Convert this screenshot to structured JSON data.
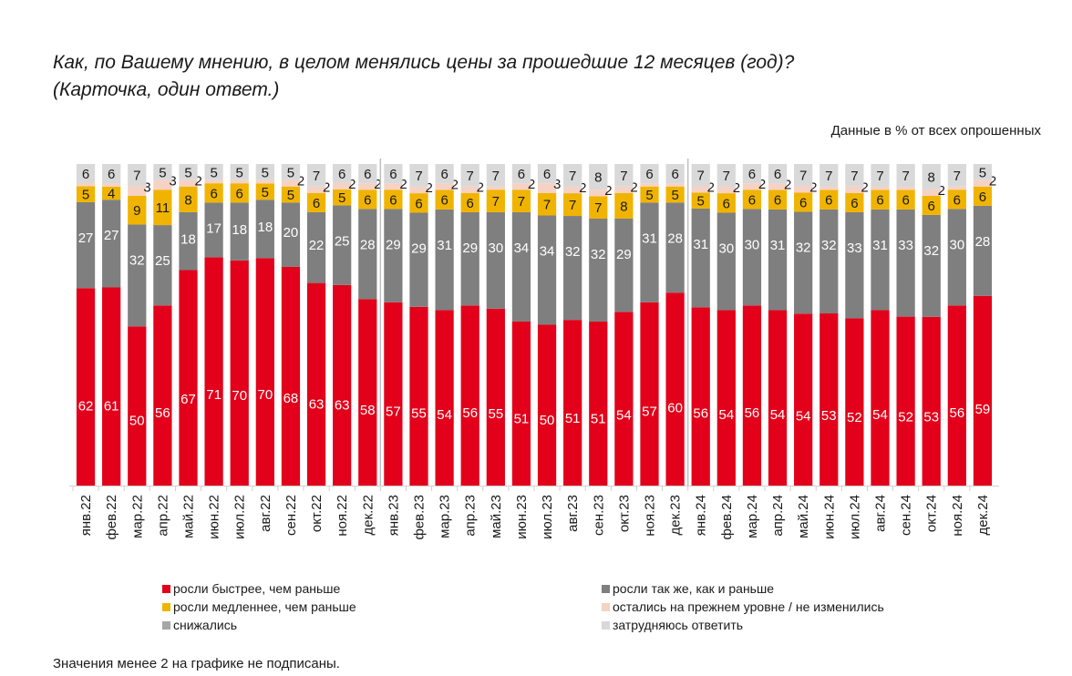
{
  "header": {
    "title": "Как, по Вашему мнению, в целом менялись цены за прошедшие 12 месяцев (год)?\n(Карточка, один ответ.)",
    "note": "Данные в % от всех опрошенных"
  },
  "footer": {
    "note": "Значения менее 2 на графике не подписаны."
  },
  "chart_data": {
    "type": "bar",
    "stacked": true,
    "title": "Как, по Вашему мнению, в целом менялись цены за прошедшие 12 месяцев (год)? (Карточка, один ответ.)",
    "subtitle": "Данные в % от всех опрошенных",
    "xlabel": "",
    "ylabel": "",
    "ylim": [
      0,
      100
    ],
    "grid": false,
    "legend_position": "bottom",
    "label_threshold": 2,
    "categories": [
      "янв.22",
      "фев.22",
      "мар.22",
      "апр.22",
      "май.22",
      "июн.22",
      "июл.22",
      "авг.22",
      "сен.22",
      "окт.22",
      "ноя.22",
      "дек.22",
      "янв.23",
      "фев.23",
      "мар.23",
      "апр.23",
      "май.23",
      "июн.23",
      "июл.23",
      "авг.23",
      "сен.23",
      "окт.23",
      "ноя.23",
      "дек.23",
      "янв.24",
      "фев.24",
      "мар.24",
      "апр.24",
      "май.24",
      "июн.24",
      "июл.24",
      "авг.24",
      "сен.24",
      "окт.24",
      "ноя.24",
      "дек.24"
    ],
    "year_separators_after": [
      "дек.22",
      "дек.23"
    ],
    "series": [
      {
        "name": "росли быстрее, чем раньше",
        "color": "#e2001a",
        "label_color": "#ffffff",
        "values": [
          62,
          61,
          50,
          56,
          67,
          71,
          70,
          70,
          68,
          63,
          63,
          58,
          57,
          55,
          54,
          56,
          55,
          51,
          50,
          51,
          51,
          54,
          57,
          60,
          56,
          54,
          56,
          54,
          54,
          53,
          52,
          54,
          52,
          53,
          56,
          59
        ]
      },
      {
        "name": "росли так же, как и раньше",
        "color": "#7f7f7f",
        "label_color": "#ffffff",
        "values": [
          27,
          27,
          32,
          25,
          18,
          17,
          18,
          18,
          20,
          22,
          25,
          28,
          29,
          29,
          31,
          29,
          30,
          34,
          34,
          32,
          32,
          29,
          31,
          28,
          31,
          30,
          30,
          31,
          32,
          32,
          33,
          31,
          33,
          32,
          30,
          28
        ]
      },
      {
        "name": "росли медленнее, чем раньше",
        "color": "#f0b400",
        "label_color": "#1a1a1a",
        "values": [
          5,
          4,
          9,
          11,
          8,
          6,
          6,
          5,
          5,
          6,
          5,
          6,
          6,
          6,
          6,
          6,
          7,
          7,
          7,
          7,
          7,
          8,
          5,
          5,
          5,
          6,
          6,
          6,
          6,
          6,
          6,
          6,
          6,
          6,
          6,
          6
        ]
      },
      {
        "name": "остались на прежнем уровне / не изменились",
        "color": "#f6d2c4",
        "label_color": "#1a1a1a",
        "values": [
          1,
          1,
          3,
          3,
          2,
          1,
          1,
          1,
          2,
          2,
          2,
          2,
          2,
          2,
          2,
          2,
          1,
          2,
          3,
          2,
          2,
          2,
          1,
          1,
          2,
          2,
          2,
          2,
          2,
          1,
          2,
          1,
          1,
          2,
          1,
          2
        ]
      },
      {
        "name": "снижались",
        "color": "#a6a6a6",
        "label_color": "#1a1a1a",
        "values": [
          0,
          0,
          0,
          0,
          0,
          0,
          0,
          0,
          0,
          0,
          0,
          0,
          0,
          0,
          0,
          0,
          0,
          0,
          0,
          0,
          0,
          0,
          0,
          0,
          0,
          0,
          0,
          0,
          0,
          0,
          0,
          0,
          0,
          0,
          0,
          0
        ]
      },
      {
        "name": "затрудняюсь ответить",
        "color": "#d9d9d9",
        "label_color": "#1a1a1a",
        "values": [
          6,
          6,
          7,
          5,
          5,
          5,
          5,
          5,
          5,
          7,
          6,
          6,
          6,
          7,
          6,
          7,
          7,
          6,
          6,
          7,
          8,
          7,
          6,
          6,
          7,
          7,
          6,
          6,
          7,
          7,
          7,
          7,
          7,
          8,
          7,
          5
        ]
      }
    ]
  },
  "legend": {
    "items": [
      {
        "label": "росли быстрее, чем раньше",
        "color": "#e2001a"
      },
      {
        "label": "росли так же, как и раньше",
        "color": "#7f7f7f"
      },
      {
        "label": "росли медленнее, чем раньше",
        "color": "#f0b400"
      },
      {
        "label": "остались на прежнем уровне / не изменились",
        "color": "#f6d2c4"
      },
      {
        "label": "снижались",
        "color": "#a6a6a6"
      },
      {
        "label": "затрудняюсь ответить",
        "color": "#d9d9d9"
      }
    ]
  }
}
